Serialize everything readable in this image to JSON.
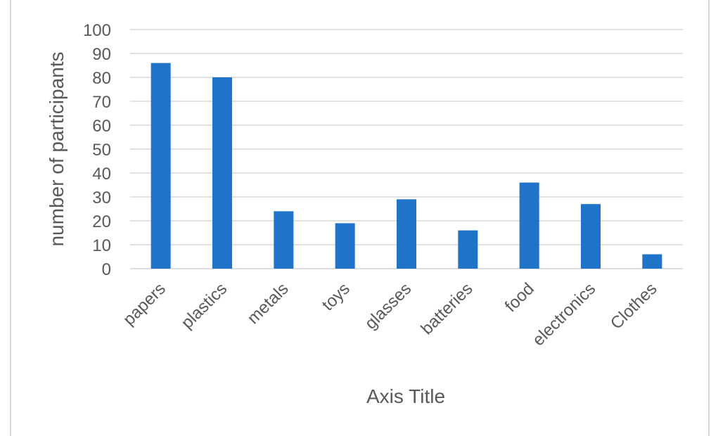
{
  "chart_data": {
    "type": "bar",
    "categories": [
      "papers",
      "plastics",
      "metals",
      "toys",
      "glasses",
      "batteries",
      "food",
      "electronics",
      "Clothes"
    ],
    "values": [
      86,
      80,
      24,
      19,
      29,
      16,
      36,
      27,
      6
    ],
    "xlabel": "Axis Title",
    "ylabel": "number of participants",
    "ylim": [
      0,
      100
    ],
    "yticks": [
      0,
      10,
      20,
      30,
      40,
      50,
      60,
      70,
      80,
      90,
      100
    ],
    "grid": true,
    "bar_color": "#1f73c9",
    "grid_color": "#d9d9d9"
  }
}
